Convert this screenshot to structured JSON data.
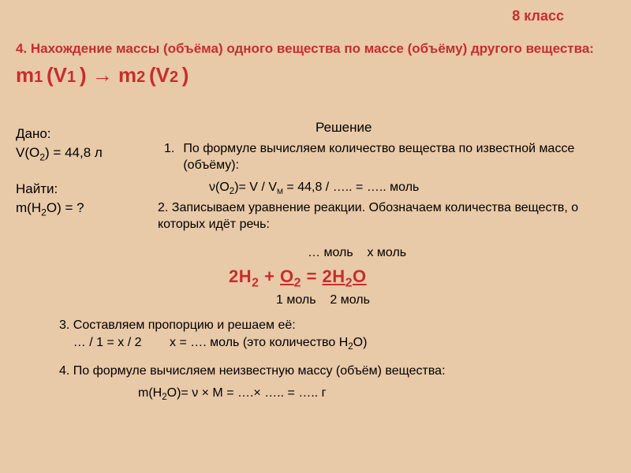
{
  "colors": {
    "background": "#e8c9a8",
    "accent": "#c62e2e",
    "text": "#000000"
  },
  "grade": "8 класс",
  "title": {
    "prefix": "4. Нахождение массы (объёма) одного вещества по массе (объёму) другого вещества: ",
    "m1": "m",
    "m1sub": "1",
    "v1": " (V",
    "v1sub": "1",
    "arrow": ") → ",
    "m2": "m",
    "m2sub": "2",
    "v2": " (V",
    "v2sub": "2",
    "close": ")"
  },
  "given": {
    "label": "Дано:",
    "line1a": "V(O",
    "line1b": ") = 44,8 л",
    "sub": "2"
  },
  "find": {
    "label": "Найти:",
    "line1a": "m(H",
    "line1b": "O) = ?",
    "sub": "2"
  },
  "solution_header": "Решение",
  "step1": {
    "num": "1.",
    "text": "По формуле вычисляем количество вещества по известной  массе (объёму):",
    "formula_a": "ν(O",
    "formula_sub": "2",
    "formula_b": ")=  V / V",
    "formula_m": "M",
    "formula_c": " = 44,8 / ….. =  ….. моль"
  },
  "step2": {
    "text": "2. Записываем уравнение реакции. Обозначаем количества веществ, о которых идёт речь:"
  },
  "mol_top": {
    "a": "… моль",
    "b": "x моль"
  },
  "equation": {
    "h": "H",
    "o": "O",
    "two": "2",
    "plus": " + ",
    "eq": " = ",
    "h2o_a": "H",
    "h2o_b": "O"
  },
  "mol_bottom": {
    "a": "1 моль",
    "b": "2 моль"
  },
  "step3": {
    "line1": "3. Составляем пропорцию и решаем её:",
    "line2a": "… / 1 = x / 2",
    "line2b": "x =  …. моль (это количество H",
    "line2sub": "2",
    "line2c": "O)"
  },
  "step4": {
    "text": "4. По формуле вычисляем неизвестную массу (объём) вещества:",
    "formula_a": "m(H",
    "formula_sub": "2",
    "formula_b": "O)=  ν × M = ….× ….. =  ….. г"
  }
}
